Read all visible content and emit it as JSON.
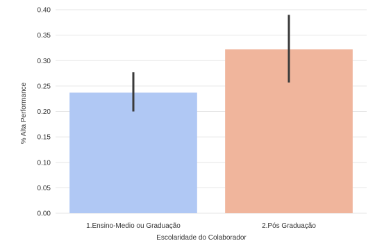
{
  "chart_data": {
    "type": "bar",
    "title": "",
    "xlabel": "Escolaridade do Colaborador",
    "ylabel": "% Alta Performance",
    "categories": [
      "1.Ensino-Medio ou Graduação",
      "2.Pós Graduação"
    ],
    "values": [
      0.237,
      0.322
    ],
    "error_bars": [
      [
        0.2,
        0.277
      ],
      [
        0.257,
        0.39
      ]
    ],
    "colors": [
      "#b0c8f4",
      "#f0b59c"
    ],
    "ylim": [
      0,
      0.4
    ],
    "yticks": [
      "0.00",
      "0.05",
      "0.10",
      "0.15",
      "0.20",
      "0.25",
      "0.30",
      "0.35",
      "0.40"
    ],
    "grid": true,
    "legend": "none"
  }
}
